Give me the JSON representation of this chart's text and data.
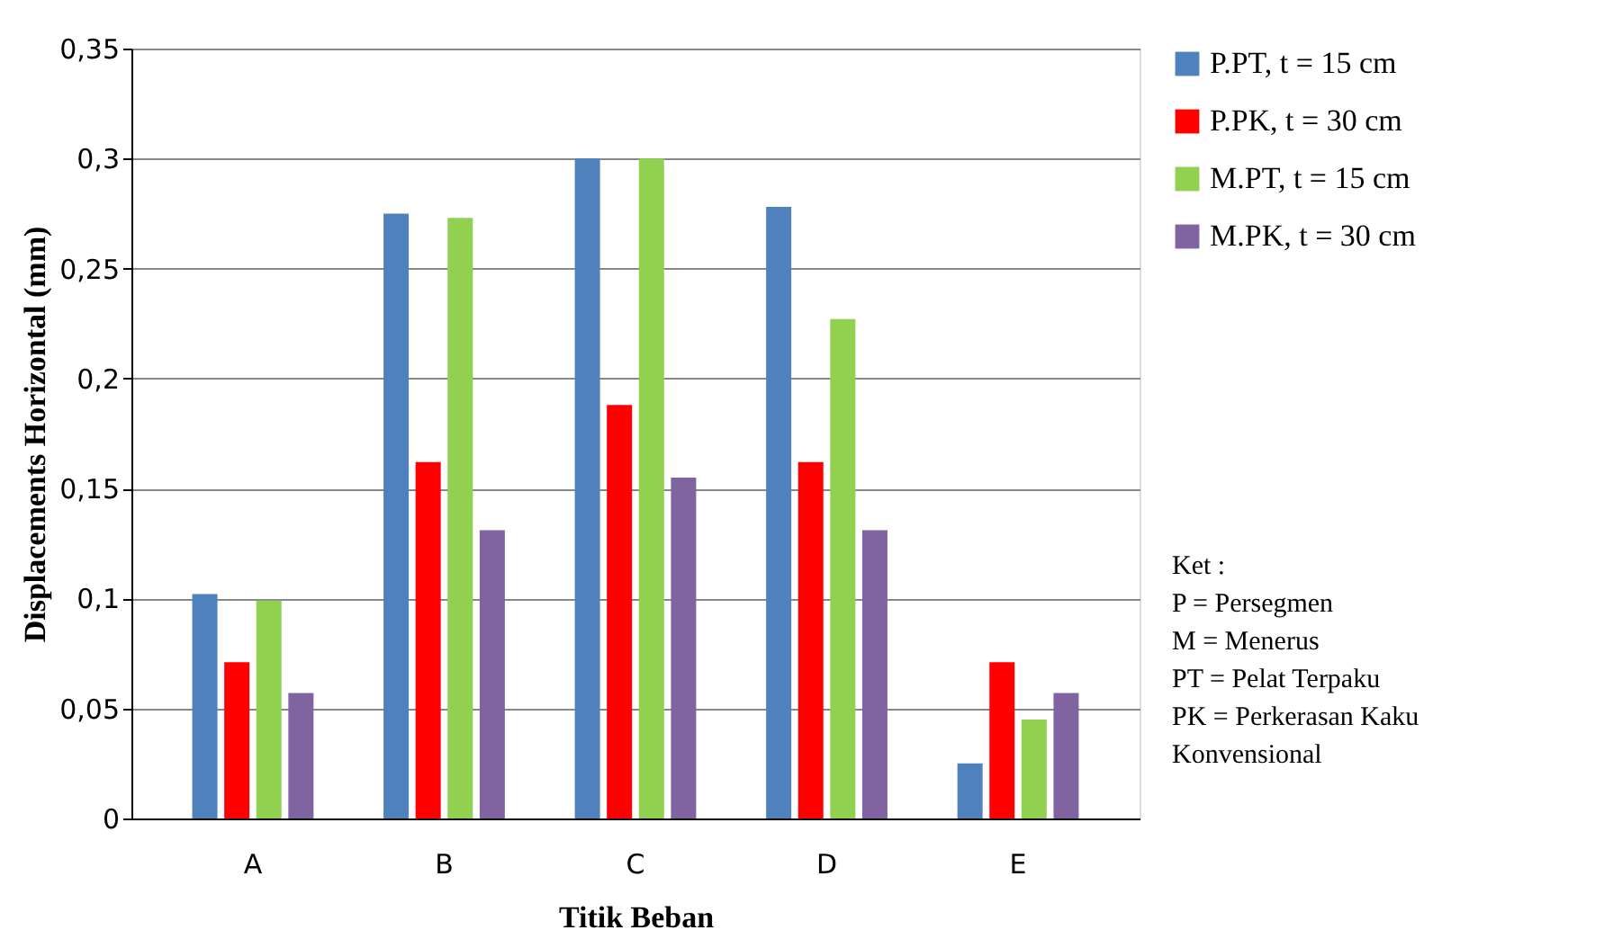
{
  "chart_data": {
    "type": "bar",
    "xlabel": "Titik Beban",
    "ylabel": "Displacements  Horizontal  (mm)",
    "categories": [
      "A",
      "B",
      "C",
      "D",
      "E"
    ],
    "series": [
      {
        "name": "P.PT, t = 15 cm",
        "color": "#4f81bd",
        "values": [
          0.102,
          0.275,
          0.3,
          0.278,
          0.025
        ]
      },
      {
        "name": "P.PK, t = 30 cm",
        "color": "#ff0000",
        "values": [
          0.071,
          0.162,
          0.188,
          0.162,
          0.071
        ]
      },
      {
        "name": "M.PT, t = 15 cm",
        "color": "#92d050",
        "values": [
          0.099,
          0.273,
          0.3,
          0.227,
          0.045
        ]
      },
      {
        "name": "M.PK, t = 30 cm",
        "color": "#8064a2",
        "values": [
          0.057,
          0.131,
          0.155,
          0.131,
          0.057
        ]
      }
    ],
    "ylim": [
      0,
      0.35
    ],
    "yticks": [
      {
        "value": 0,
        "label": "0"
      },
      {
        "value": 0.05,
        "label": "0,05"
      },
      {
        "value": 0.1,
        "label": "0,1"
      },
      {
        "value": 0.15,
        "label": "0,15"
      },
      {
        "value": 0.2,
        "label": "0,2"
      },
      {
        "value": 0.25,
        "label": "0,25"
      },
      {
        "value": 0.3,
        "label": "0,3"
      },
      {
        "value": 0.35,
        "label": "0,35"
      }
    ],
    "grid": "y",
    "legend": "right",
    "annotations": [
      "Ket :",
      "P   = Persegmen",
      "M  = Menerus",
      "PT = Pelat Terpaku",
      "PK = Perkerasan Kaku",
      "         Konvensional"
    ]
  }
}
